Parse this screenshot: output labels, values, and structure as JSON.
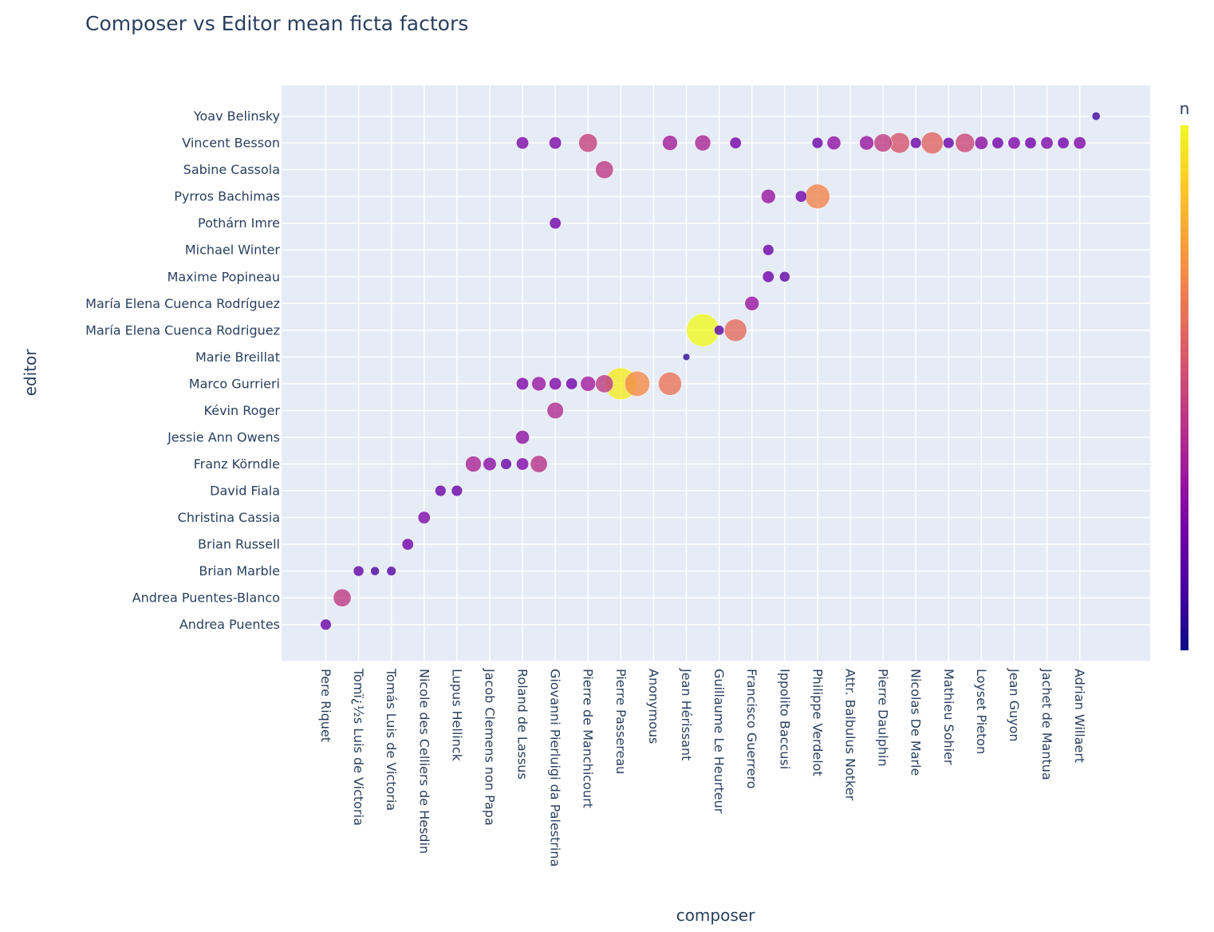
{
  "chart_data": {
    "type": "scatter",
    "title": "Composer vs Editor mean ficta factors",
    "xlabel": "composer",
    "ylabel": "editor",
    "colorbar_label": "n",
    "colorscale": [
      "#0d0887",
      "#46039f",
      "#7201a8",
      "#9c179e",
      "#bd3786",
      "#d8576b",
      "#ed7953",
      "#fb9f3a",
      "#fdca26",
      "#f0f921"
    ],
    "background": "#e5ecf6",
    "grid": true,
    "legend": "none",
    "x_categories": [
      "Pere Riquet",
      "Tomï¿½s Luis de Victoria",
      "Tomás Luis de Victoria",
      "Nicole des Celliers de Hesdin",
      "Lupus Hellinck",
      "Jacob Clemens non Papa",
      "Roland de Lassus",
      "Giovanni Pierluigi da Palestrina",
      "Pierre de Manchicourt",
      "Pierre Passereau",
      "Anonymous",
      "Jean Hérissant",
      "Guillaume Le Heurteur",
      "Francisco Guerrero",
      "Ippolito Baccusi",
      "Philippe Verdelot",
      "Attr. Balbulus Notker",
      "Pierre Daulphin",
      "Nicolas De Marle",
      "Mathieu Sohier",
      "Loyset Pieton",
      "Jean Guyon",
      "Jachet de Mantua",
      "Adrian Willaert"
    ],
    "x_tick_labels": [
      "Pere Riquet",
      "Tomï¿½s Luis de Victoria",
      "Tomás Luis de Victoria",
      "Nicole des Celliers de Hesdin",
      "Lupus Hellinck",
      "Jacob Clemens non Papa",
      "Roland de Lassus",
      "Giovanni Pierluigi da Palestrina",
      "Pierre de Manchicourt",
      "Pierre Passereau",
      "Anonymous",
      "Jean Hérissant",
      "Guillaume Le Heurteur",
      "Francisco Guerrero",
      "Ippolito Baccusi",
      "Philippe Verdelot",
      "Attr. Balbulus Notker",
      "Pierre Daulphin",
      "Nicolas De Marle",
      "Mathieu Sohier",
      "Loyset Pieton",
      "Jean Guyon",
      "Jachet de Mantua",
      "Adrian Willaert"
    ],
    "y_categories": [
      "Andrea Puentes",
      "Andrea Puentes-Blanco",
      "Brian Marble",
      "Brian Russell",
      "Christina Cassia",
      "David Fiala",
      "Franz Körndle",
      "Jessie Ann Owens",
      "Kévin Roger",
      "Marco Gurrieri",
      "Marie Breillat",
      "María Elena Cuenca Rodriguez",
      "María Elena Cuenca Rodríguez",
      "Maxime Popineau",
      "Michael Winter",
      "Pothárn Imre",
      "Pyrros Bachimas",
      "Sabine Cassola",
      "Vincent Besson",
      "Yoav Belinsky"
    ],
    "x_range": [
      -1.35,
      25.15
    ],
    "y_range": [
      -1.35,
      20.15
    ],
    "points": [
      {
        "x": 0,
        "y": 0,
        "n": 0.2
      },
      {
        "x": 0.5,
        "y": 1,
        "n": 0.45
      },
      {
        "x": 1,
        "y": 2,
        "n": 0.18
      },
      {
        "x": 1.5,
        "y": 2,
        "n": 0.12
      },
      {
        "x": 2,
        "y": 2,
        "n": 0.14
      },
      {
        "x": 2.5,
        "y": 3,
        "n": 0.22
      },
      {
        "x": 3,
        "y": 4,
        "n": 0.25
      },
      {
        "x": 3.5,
        "y": 5,
        "n": 0.2
      },
      {
        "x": 4,
        "y": 5,
        "n": 0.2
      },
      {
        "x": 4.5,
        "y": 6,
        "n": 0.38
      },
      {
        "x": 5,
        "y": 6,
        "n": 0.28
      },
      {
        "x": 5.5,
        "y": 6,
        "n": 0.2
      },
      {
        "x": 6,
        "y": 6,
        "n": 0.25
      },
      {
        "x": 6.5,
        "y": 6,
        "n": 0.42
      },
      {
        "x": 6,
        "y": 7,
        "n": 0.3
      },
      {
        "x": 7,
        "y": 8,
        "n": 0.4
      },
      {
        "x": 6,
        "y": 9,
        "n": 0.25
      },
      {
        "x": 6.5,
        "y": 9,
        "n": 0.32
      },
      {
        "x": 7,
        "y": 9,
        "n": 0.25
      },
      {
        "x": 7.5,
        "y": 9,
        "n": 0.22
      },
      {
        "x": 8,
        "y": 9,
        "n": 0.35
      },
      {
        "x": 8.5,
        "y": 9,
        "n": 0.45
      },
      {
        "x": 9,
        "y": 9,
        "n": 0.97
      },
      {
        "x": 9.5,
        "y": 9,
        "n": 0.72
      },
      {
        "x": 10.5,
        "y": 9,
        "n": 0.65
      },
      {
        "x": 11,
        "y": 10,
        "n": 0.05
      },
      {
        "x": 12,
        "y": 11,
        "n": 0.16
      },
      {
        "x": 11.5,
        "y": 11,
        "n": 1.0
      },
      {
        "x": 12.5,
        "y": 11,
        "n": 0.62
      },
      {
        "x": 13,
        "y": 12,
        "n": 0.32
      },
      {
        "x": 13.5,
        "y": 13,
        "n": 0.22
      },
      {
        "x": 14,
        "y": 13,
        "n": 0.18
      },
      {
        "x": 13.5,
        "y": 14,
        "n": 0.2
      },
      {
        "x": 7,
        "y": 15,
        "n": 0.22
      },
      {
        "x": 13.5,
        "y": 16,
        "n": 0.32
      },
      {
        "x": 14.5,
        "y": 16,
        "n": 0.22
      },
      {
        "x": 15,
        "y": 16,
        "n": 0.7
      },
      {
        "x": 8.5,
        "y": 17,
        "n": 0.45
      },
      {
        "x": 6,
        "y": 18,
        "n": 0.25
      },
      {
        "x": 7,
        "y": 18,
        "n": 0.25
      },
      {
        "x": 8,
        "y": 18,
        "n": 0.48
      },
      {
        "x": 10.5,
        "y": 18,
        "n": 0.35
      },
      {
        "x": 11.5,
        "y": 18,
        "n": 0.38
      },
      {
        "x": 12.5,
        "y": 18,
        "n": 0.22
      },
      {
        "x": 15,
        "y": 18,
        "n": 0.2
      },
      {
        "x": 15.5,
        "y": 18,
        "n": 0.3
      },
      {
        "x": 16.5,
        "y": 18,
        "n": 0.32
      },
      {
        "x": 17,
        "y": 18,
        "n": 0.46
      },
      {
        "x": 17.5,
        "y": 18,
        "n": 0.55
      },
      {
        "x": 18,
        "y": 18,
        "n": 0.2
      },
      {
        "x": 18.5,
        "y": 18,
        "n": 0.6
      },
      {
        "x": 19,
        "y": 18,
        "n": 0.2
      },
      {
        "x": 19.5,
        "y": 18,
        "n": 0.5
      },
      {
        "x": 20,
        "y": 18,
        "n": 0.28
      },
      {
        "x": 20.5,
        "y": 18,
        "n": 0.22
      },
      {
        "x": 21,
        "y": 18,
        "n": 0.25
      },
      {
        "x": 21.5,
        "y": 18,
        "n": 0.22
      },
      {
        "x": 22,
        "y": 18,
        "n": 0.25
      },
      {
        "x": 22.5,
        "y": 18,
        "n": 0.22
      },
      {
        "x": 23,
        "y": 18,
        "n": 0.25
      },
      {
        "x": 23.5,
        "y": 19,
        "n": 0.1
      }
    ]
  }
}
